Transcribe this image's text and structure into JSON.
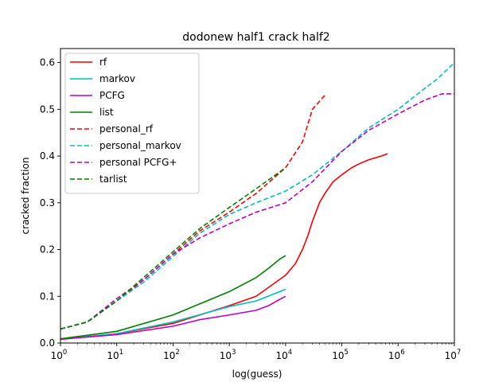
{
  "chart_data": {
    "type": "line",
    "title": "dodonew half1 crack half2",
    "xlabel": "log(guess)",
    "ylabel": "cracked fraction",
    "x_scale": "log",
    "xlim": [
      1,
      10000000
    ],
    "ylim": [
      0,
      0.63
    ],
    "x_ticks": [
      {
        "value": 1,
        "base": "10",
        "exp": "0"
      },
      {
        "value": 10,
        "base": "10",
        "exp": "1"
      },
      {
        "value": 100,
        "base": "10",
        "exp": "2"
      },
      {
        "value": 1000,
        "base": "10",
        "exp": "3"
      },
      {
        "value": 10000,
        "base": "10",
        "exp": "4"
      },
      {
        "value": 100000,
        "base": "10",
        "exp": "5"
      },
      {
        "value": 1000000,
        "base": "10",
        "exp": "6"
      },
      {
        "value": 10000000,
        "base": "10",
        "exp": "7"
      }
    ],
    "y_ticks": [
      {
        "value": 0.0,
        "label": "0.0"
      },
      {
        "value": 0.1,
        "label": "0.1"
      },
      {
        "value": 0.2,
        "label": "0.2"
      },
      {
        "value": 0.3,
        "label": "0.3"
      },
      {
        "value": 0.4,
        "label": "0.4"
      },
      {
        "value": 0.5,
        "label": "0.5"
      },
      {
        "value": 0.6,
        "label": "0.6"
      }
    ],
    "grid": false,
    "legend_position": "top-left",
    "series": [
      {
        "name": "rf",
        "color": "#ff0000",
        "dash": "solid",
        "x": [
          1,
          10,
          100,
          1000,
          3000,
          10000,
          15000,
          20000,
          25000,
          30000,
          40000,
          50000,
          70000,
          100000,
          150000,
          200000,
          300000,
          500000,
          650000
        ],
        "y": [
          0.008,
          0.02,
          0.042,
          0.08,
          0.1,
          0.145,
          0.17,
          0.2,
          0.23,
          0.26,
          0.3,
          0.32,
          0.345,
          0.36,
          0.375,
          0.383,
          0.392,
          0.4,
          0.405
        ]
      },
      {
        "name": "markov",
        "color": "#00bfbf",
        "dash": "solid",
        "x": [
          1,
          10,
          100,
          1000,
          3000,
          10000
        ],
        "y": [
          0.008,
          0.02,
          0.045,
          0.078,
          0.09,
          0.115
        ]
      },
      {
        "name": "PCFG",
        "color": "#bf00bf",
        "dash": "solid",
        "x": [
          1,
          10,
          100,
          300,
          1000,
          3000,
          5000,
          7000,
          10000
        ],
        "y": [
          0.008,
          0.018,
          0.036,
          0.05,
          0.06,
          0.07,
          0.08,
          0.09,
          0.1
        ]
      },
      {
        "name": "list",
        "color": "#008000",
        "dash": "solid",
        "x": [
          1,
          10,
          100,
          1000,
          3000,
          5000,
          8000,
          10000
        ],
        "y": [
          0.009,
          0.025,
          0.06,
          0.11,
          0.14,
          0.16,
          0.18,
          0.187
        ]
      },
      {
        "name": "personal_rf",
        "color": "#ff0000",
        "dash": "dashed",
        "x": [
          1,
          3,
          10,
          30,
          100,
          300,
          1000,
          3000,
          10000,
          20000,
          30000,
          50000
        ],
        "y": [
          0.03,
          0.045,
          0.09,
          0.135,
          0.19,
          0.24,
          0.28,
          0.32,
          0.375,
          0.43,
          0.5,
          0.53
        ]
      },
      {
        "name": "personal_markov",
        "color": "#00bfbf",
        "dash": "dashed",
        "x": [
          1,
          3,
          10,
          30,
          100,
          300,
          1000,
          3000,
          10000,
          30000,
          100000,
          300000,
          1000000,
          3000000,
          5000000,
          10000000
        ],
        "y": [
          0.03,
          0.045,
          0.09,
          0.13,
          0.185,
          0.235,
          0.275,
          0.3,
          0.325,
          0.36,
          0.41,
          0.46,
          0.5,
          0.545,
          0.565,
          0.6
        ]
      },
      {
        "name": "personal PCFG+",
        "color": "#bf00bf",
        "dash": "dashed",
        "x": [
          1,
          3,
          10,
          30,
          100,
          300,
          1000,
          3000,
          10000,
          30000,
          100000,
          300000,
          1000000,
          3000000,
          6000000,
          10000000
        ],
        "y": [
          0.03,
          0.045,
          0.095,
          0.135,
          0.19,
          0.225,
          0.255,
          0.28,
          0.3,
          0.345,
          0.41,
          0.455,
          0.49,
          0.52,
          0.533,
          0.533
        ]
      },
      {
        "name": "tarlist",
        "color": "#008000",
        "dash": "dashed",
        "x": [
          1,
          3,
          10,
          30,
          100,
          300,
          1000,
          3000,
          10000
        ],
        "y": [
          0.03,
          0.045,
          0.09,
          0.14,
          0.195,
          0.245,
          0.29,
          0.33,
          0.375
        ]
      }
    ]
  }
}
